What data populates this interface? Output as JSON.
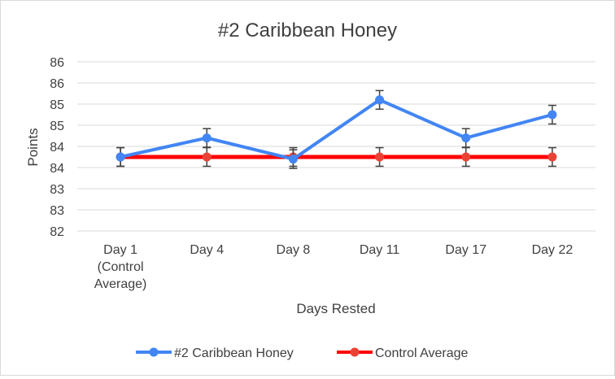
{
  "chart_data": {
    "type": "line",
    "title": "#2 Caribbean Honey",
    "xlabel": "Days Rested",
    "ylabel": "Points",
    "categories": [
      [
        "Day 1",
        "(Control",
        "Average)"
      ],
      [
        "Day 4"
      ],
      [
        "Day 8"
      ],
      [
        "Day 11"
      ],
      [
        "Day 17"
      ],
      [
        "Day 22"
      ]
    ],
    "y_tick_labels": [
      "86",
      "86",
      "85",
      "85",
      "84",
      "84",
      "83",
      "83",
      "82"
    ],
    "ylim": [
      82,
      86
    ],
    "grid": true,
    "legend_position": "bottom",
    "series": [
      {
        "name": "#2 Caribbean Honey",
        "color": "#4285F4",
        "values": [
          83.75,
          84.2,
          83.7,
          85.1,
          84.2,
          84.75
        ],
        "error": 0.22
      },
      {
        "name": "Control Average",
        "color": "#FF0000",
        "marker_color": "#EA4335",
        "values": [
          83.75,
          83.75,
          83.75,
          83.75,
          83.75,
          83.75
        ],
        "error": 0.22
      }
    ]
  }
}
